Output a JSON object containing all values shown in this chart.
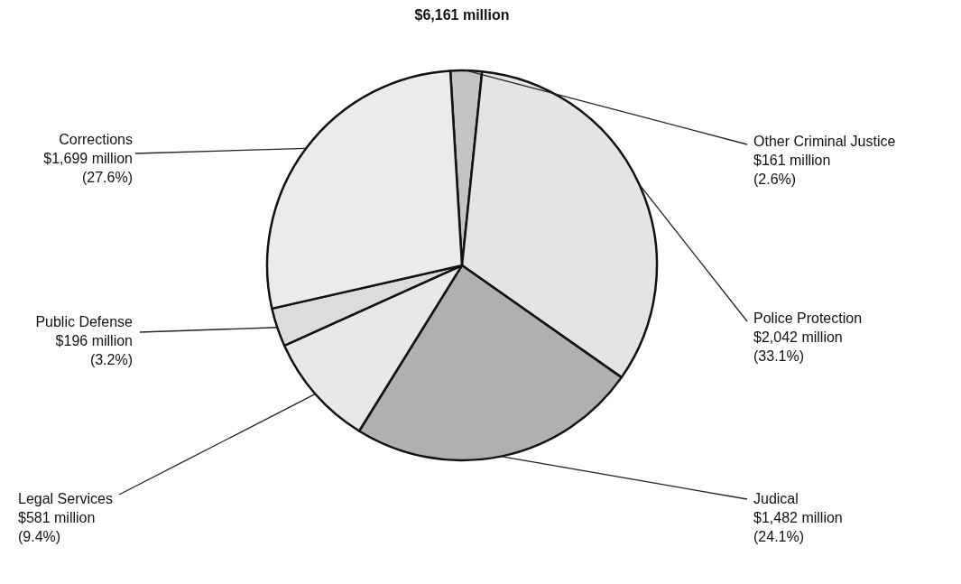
{
  "chart_data": {
    "type": "pie",
    "title": "$6,161 million",
    "categories": [
      "Other Criminal Justice",
      "Police Protection",
      "Judical",
      "Legal Services",
      "Public Defense",
      "Corrections"
    ],
    "values": [
      2.6,
      33.1,
      24.1,
      9.4,
      3.2,
      27.6
    ],
    "value_labels": [
      "$161 million\n(2.6%)",
      "$2,042 million\n(33.1%)",
      "$1,482 million\n(24.1%)",
      "$581 million\n(9.4%)",
      "$196 million\n(3.2%)",
      "$1,699 million\n(27.6%)"
    ],
    "colors": [
      "#c4c4c4",
      "#e4e4e4",
      "#b0b0b0",
      "#e8e8e8",
      "#dcdcdc",
      "#ebebeb"
    ]
  }
}
